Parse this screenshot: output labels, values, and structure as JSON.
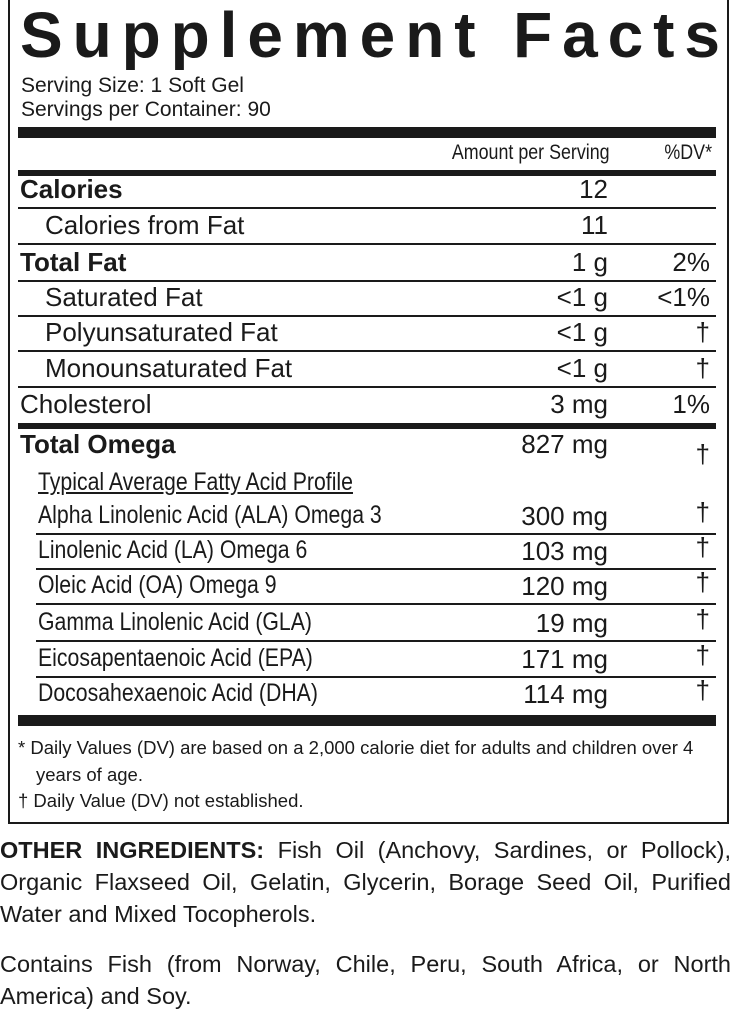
{
  "header": {
    "title": "Supplement Facts",
    "serving_size": "Serving Size: 1 Soft Gel",
    "servings_per_container": "Servings per Container: 90"
  },
  "table": {
    "column_headers": {
      "amount": "Amount per Serving",
      "dv": "%DV*"
    },
    "nutrients": [
      {
        "name": "Calories",
        "amount": "12"
      },
      {
        "name": "Calories from Fat",
        "amount": "11"
      },
      {
        "name": "Total Fat",
        "amount": "1 g",
        "dv": "2%"
      },
      {
        "name": "Saturated Fat",
        "amount": "<1 g",
        "dv": "<1%"
      },
      {
        "name": "Polyunsaturated Fat",
        "amount": "<1 g",
        "dv": "†"
      },
      {
        "name": "Monounsaturated Fat",
        "amount": "<1 g",
        "dv": "†"
      },
      {
        "name": "Cholesterol",
        "amount": "3 mg",
        "dv": "1%"
      },
      {
        "name": "Total Omega",
        "amount": "827 mg",
        "dv": "†"
      }
    ],
    "fatty_acid_profile": {
      "title": "Typical Average Fatty Acid Profile",
      "rows": [
        {
          "name": "Alpha Linolenic Acid (ALA) Omega 3",
          "amount": "300 mg",
          "dv": "†"
        },
        {
          "name": "Linolenic Acid (LA) Omega 6",
          "amount": "103 mg",
          "dv": "†"
        },
        {
          "name": "Oleic Acid (OA) Omega 9",
          "amount": "120 mg",
          "dv": "†"
        },
        {
          "name": "Gamma Linolenic Acid (GLA)",
          "amount": "19 mg",
          "dv": "†"
        },
        {
          "name": "Eicosapentaenoic Acid (EPA)",
          "amount": "171 mg",
          "dv": "†"
        },
        {
          "name": "Docosahexaenoic Acid (DHA)",
          "amount": "114 mg",
          "dv": "†"
        }
      ]
    }
  },
  "footnotes": [
    "* Daily Values (DV) are based on a 2,000 calorie diet for adults and children over 4 years of age.",
    "† Daily Value (DV) not established."
  ],
  "other_ingredients": {
    "label": "OTHER INGREDIENTS:",
    "text": "Fish Oil (Anchovy, Sardines, or Pollock), Organic Flaxseed Oil, Gelatin, Glycerin, Borage Seed Oil, Purified Water and Mixed Tocopherols."
  },
  "allergens": "Contains Fish (from Norway, Chile, Peru, South Africa, or North America) and Soy."
}
